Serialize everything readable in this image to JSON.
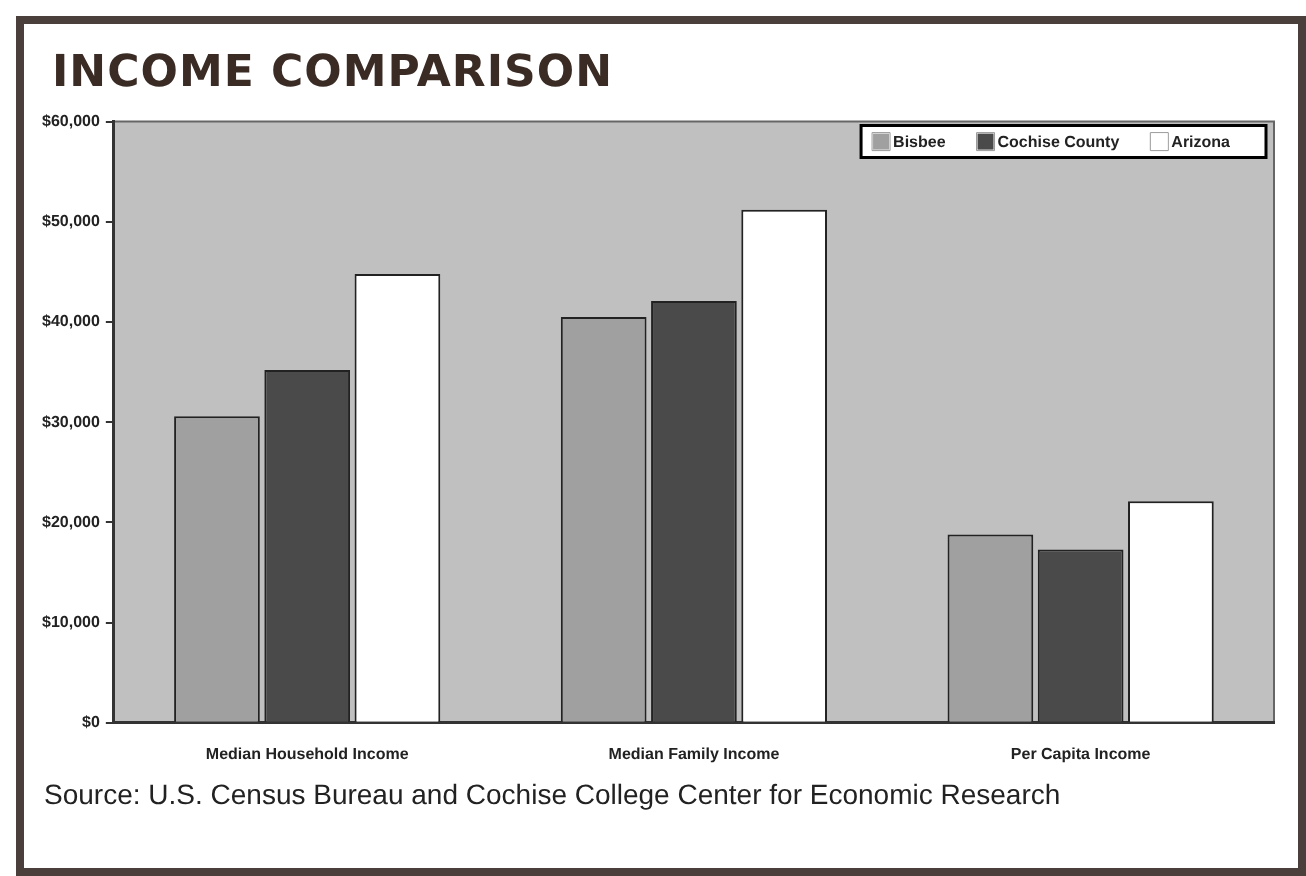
{
  "chart_data": {
    "type": "bar",
    "title": "INCOME COMPARISON",
    "categories": [
      "Median Household Income",
      "Median Family Income",
      "Per Capita Income"
    ],
    "series": [
      {
        "name": "Bisbee",
        "color": "#a0a0a0",
        "values": [
          30600,
          40500,
          18800
        ]
      },
      {
        "name": "Cochise County",
        "color": "#4a4a4a",
        "values": [
          35200,
          42100,
          17300
        ]
      },
      {
        "name": "Arizona",
        "color": "#ffffff",
        "values": [
          44800,
          51200,
          22100
        ]
      }
    ],
    "ylim": [
      0,
      60000
    ],
    "yticks": [
      {
        "value": 0,
        "label": "$0"
      },
      {
        "value": 10000,
        "label": "$10,000"
      },
      {
        "value": 20000,
        "label": "$20,000"
      },
      {
        "value": 30000,
        "label": "$30,000"
      },
      {
        "value": 40000,
        "label": "$40,000"
      },
      {
        "value": 50000,
        "label": "$50,000"
      },
      {
        "value": 60000,
        "label": "$60,000"
      }
    ],
    "grid": false,
    "legend": "top right",
    "annotations": [
      "Source: U.S. Census Bureau and Cochise College Center for Economic Research"
    ]
  }
}
